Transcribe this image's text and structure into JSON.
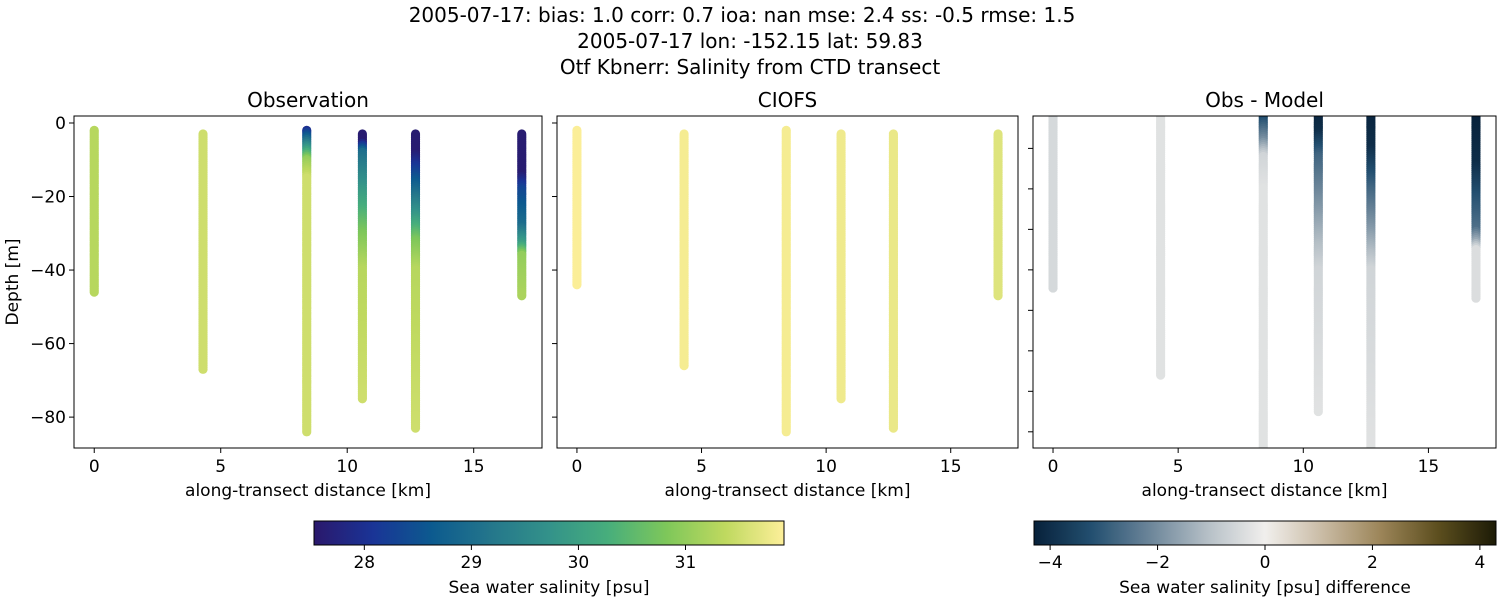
{
  "title_lines": [
    "2005-07-17: bias: 1.0  corr: 0.7  ioa: nan  mse: 2.4  ss: -0.5  rmse: 1.5",
    "2005-07-17 lon: -152.15 lat: 59.83",
    "Otf Kbnerr: Salinity from CTD transect"
  ],
  "chart_data": [
    {
      "type": "scatter",
      "title": "Observation",
      "xlabel": "along-transect distance [km]",
      "ylabel": "Depth [m]",
      "xlim": [
        -0.8,
        17.7
      ],
      "ylim": [
        -88.4,
        1.9
      ],
      "xticks": [
        0,
        5,
        10,
        15
      ],
      "yticks": [
        0,
        -20,
        -40,
        -60,
        -80
      ],
      "colormap": "haline",
      "stations": [
        {
          "x": 0,
          "top": -2,
          "bottom": -46,
          "profile": [
            [
              2,
              31.3
            ],
            [
              46,
              31.3
            ]
          ]
        },
        {
          "x": 4.3,
          "top": -3,
          "bottom": -67,
          "profile": [
            [
              3,
              31.5
            ],
            [
              67,
              31.5
            ]
          ]
        },
        {
          "x": 8.4,
          "top": -2,
          "bottom": -84,
          "profile": [
            [
              2,
              28.0
            ],
            [
              6,
              29.5
            ],
            [
              10,
              31.0
            ],
            [
              15,
              31.5
            ],
            [
              84,
              31.5
            ]
          ]
        },
        {
          "x": 10.6,
          "top": -3,
          "bottom": -75,
          "profile": [
            [
              3,
              27.6
            ],
            [
              5,
              27.6
            ],
            [
              8,
              29.0
            ],
            [
              20,
              30.0
            ],
            [
              30,
              30.8
            ],
            [
              40,
              31.3
            ],
            [
              75,
              31.5
            ]
          ]
        },
        {
          "x": 12.7,
          "top": -3,
          "bottom": -83,
          "profile": [
            [
              3,
              27.6
            ],
            [
              8,
              27.6
            ],
            [
              15,
              28.5
            ],
            [
              25,
              29.8
            ],
            [
              32,
              30.8
            ],
            [
              40,
              31.3
            ],
            [
              83,
              31.5
            ]
          ]
        },
        {
          "x": 16.9,
          "top": -3,
          "bottom": -47,
          "profile": [
            [
              3,
              27.6
            ],
            [
              14,
              27.6
            ],
            [
              18,
              28.3
            ],
            [
              28,
              29.0
            ],
            [
              33,
              30.0
            ],
            [
              36,
              31.0
            ],
            [
              47,
              31.2
            ]
          ]
        }
      ]
    },
    {
      "type": "scatter",
      "title": "CIOFS",
      "xlabel": "along-transect distance [km]",
      "xlim": [
        -0.8,
        17.7
      ],
      "ylim": [
        -88.4,
        1.9
      ],
      "xticks": [
        0,
        5,
        10,
        15
      ],
      "colormap": "haline",
      "stations": [
        {
          "x": 0,
          "top": -2,
          "bottom": -44,
          "profile": [
            [
              2,
              31.9
            ],
            [
              44,
              31.9
            ]
          ]
        },
        {
          "x": 4.3,
          "top": -3,
          "bottom": -66,
          "profile": [
            [
              3,
              31.85
            ],
            [
              66,
              31.85
            ]
          ]
        },
        {
          "x": 8.4,
          "top": -2,
          "bottom": -84,
          "profile": [
            [
              2,
              31.85
            ],
            [
              84,
              31.85
            ]
          ]
        },
        {
          "x": 10.6,
          "top": -3,
          "bottom": -75,
          "profile": [
            [
              3,
              31.8
            ],
            [
              75,
              31.8
            ]
          ]
        },
        {
          "x": 12.7,
          "top": -3,
          "bottom": -83,
          "profile": [
            [
              3,
              31.75
            ],
            [
              83,
              31.75
            ]
          ]
        },
        {
          "x": 16.9,
          "top": -3,
          "bottom": -47,
          "profile": [
            [
              3,
              31.65
            ],
            [
              47,
              31.65
            ]
          ]
        }
      ]
    },
    {
      "type": "scatter",
      "title": "Obs - Model",
      "xlabel": "along-transect distance [km]",
      "xlim": [
        -0.8,
        17.7
      ],
      "ylim": [
        -84,
        -2
      ],
      "xticks": [
        0,
        5,
        10,
        15
      ],
      "yticks": [
        -10,
        -20,
        -30,
        -40,
        -50,
        -60,
        -70,
        -80
      ],
      "colormap": "diff",
      "stations": [
        {
          "x": 0,
          "top": -2,
          "bottom": -44.7,
          "profile": [
            [
              2,
              -0.5
            ],
            [
              45,
              -0.5
            ]
          ]
        },
        {
          "x": 4.3,
          "top": -2,
          "bottom": -66,
          "profile": [
            [
              2,
              -0.3
            ],
            [
              66,
              -0.3
            ]
          ]
        },
        {
          "x": 8.4,
          "top": -2,
          "bottom": -84,
          "profile": [
            [
              2,
              -3.5
            ],
            [
              8,
              -2.0
            ],
            [
              12,
              -0.6
            ],
            [
              20,
              -0.3
            ],
            [
              84,
              -0.3
            ]
          ]
        },
        {
          "x": 10.6,
          "top": -2,
          "bottom": -75,
          "profile": [
            [
              2,
              -4.2
            ],
            [
              6,
              -4.0
            ],
            [
              12,
              -2.8
            ],
            [
              25,
              -1.8
            ],
            [
              40,
              -0.6
            ],
            [
              75,
              -0.3
            ]
          ]
        },
        {
          "x": 12.7,
          "top": -2,
          "bottom": -84,
          "profile": [
            [
              2,
              -4.2
            ],
            [
              10,
              -4.0
            ],
            [
              20,
              -2.8
            ],
            [
              30,
              -1.8
            ],
            [
              40,
              -0.6
            ],
            [
              84,
              -0.3
            ]
          ]
        },
        {
          "x": 16.9,
          "top": -2,
          "bottom": -47.4,
          "profile": [
            [
              2,
              -4.3
            ],
            [
              14,
              -4.0
            ],
            [
              22,
              -3.2
            ],
            [
              30,
              -2.6
            ],
            [
              33,
              -1.5
            ],
            [
              35,
              -0.4
            ],
            [
              47,
              -0.4
            ]
          ]
        }
      ]
    }
  ],
  "colorbars": [
    {
      "label": "Sea water salinity [psu]",
      "range": [
        27.53,
        31.92
      ],
      "ticks": [
        28,
        29,
        30,
        31
      ],
      "colormap": "haline"
    },
    {
      "label": "Sea water salinity [psu] difference",
      "range": [
        -4.3,
        4.3
      ],
      "ticks": [
        -4,
        -2,
        0,
        2,
        4
      ],
      "colormap": "diff"
    }
  ],
  "colormaps": {
    "haline": [
      "#2a186c",
      "#1a3496",
      "#0c5a8f",
      "#24768b",
      "#33928a",
      "#47ae7c",
      "#7ec75a",
      "#bfd95f",
      "#fdef9a"
    ],
    "diff": [
      "#07213a",
      "#234f70",
      "#6b8599",
      "#b5bfc6",
      "#f1efed",
      "#c9bba4",
      "#9c8559",
      "#5c4e1e",
      "#1c1b06"
    ]
  }
}
